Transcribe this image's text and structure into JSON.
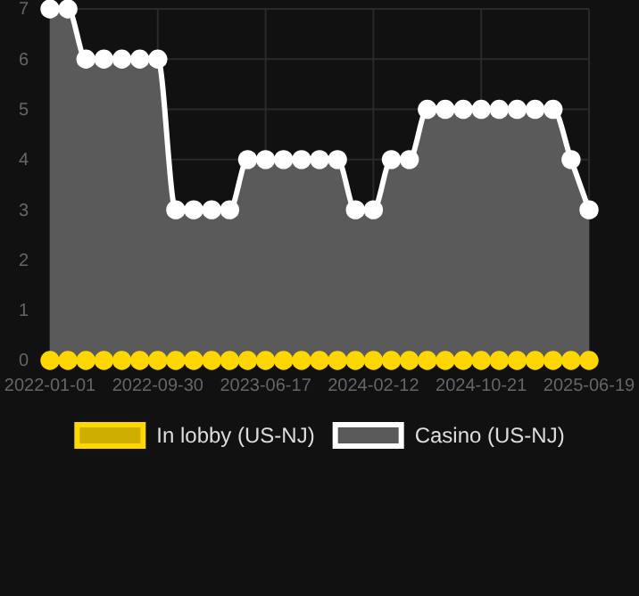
{
  "chart_data": {
    "type": "line",
    "categories": [
      "2022-01-01",
      null,
      null,
      null,
      null,
      null,
      "2022-09-30",
      null,
      null,
      null,
      null,
      null,
      "2023-06-17",
      null,
      null,
      null,
      null,
      null,
      "2024-02-12",
      null,
      null,
      null,
      null,
      null,
      "2024-10-21",
      null,
      null,
      null,
      null,
      null,
      "2025-06-19"
    ],
    "series": [
      {
        "name": "In lobby (US-NJ)",
        "color": "#ffd700",
        "values": [
          0,
          0,
          0,
          0,
          0,
          0,
          0,
          0,
          0,
          0,
          0,
          0,
          0,
          0,
          0,
          0,
          0,
          0,
          0,
          0,
          0,
          0,
          0,
          0,
          0,
          0,
          0,
          0,
          0,
          0,
          0
        ]
      },
      {
        "name": "Casino (US-NJ)",
        "type": "area",
        "color": "#ffffff",
        "values": [
          7,
          7,
          6,
          6,
          6,
          6,
          6,
          3,
          3,
          3,
          3,
          4,
          4,
          4,
          4,
          4,
          4,
          3,
          3,
          4,
          4,
          5,
          5,
          5,
          5,
          5,
          5,
          5,
          5,
          4,
          3
        ]
      }
    ],
    "ylim": [
      0,
      7
    ],
    "yticks": [
      0,
      1,
      2,
      3,
      4,
      5,
      6,
      7
    ],
    "grid": true,
    "legend": "bottom",
    "marker": "circle",
    "line_style": "solid"
  }
}
